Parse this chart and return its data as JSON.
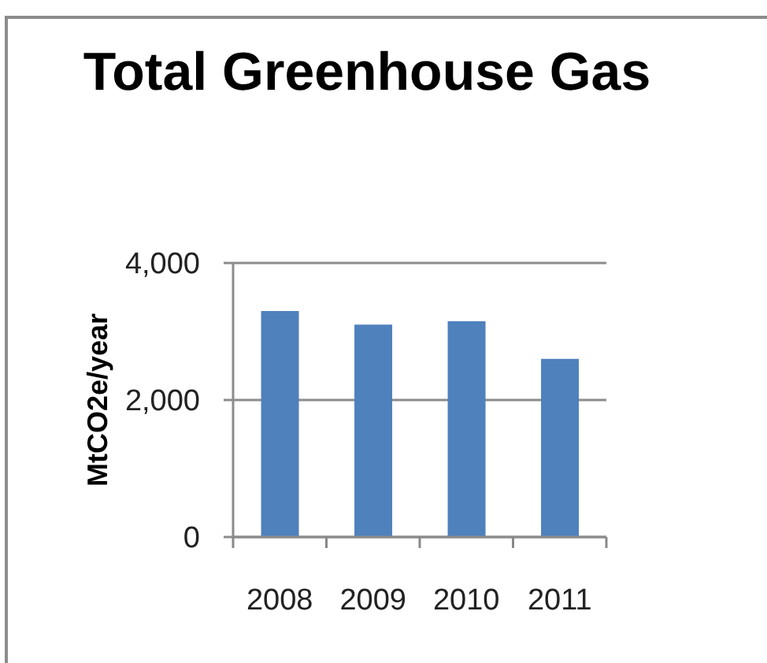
{
  "chart_data": {
    "type": "bar",
    "title": "Total Greenhouse Gas",
    "ylabel": "MtCO2e/year",
    "categories": [
      "2008",
      "2009",
      "2010",
      "2011"
    ],
    "values": [
      3300,
      3100,
      3150,
      2600
    ],
    "color": "#4f81bd",
    "ylim": [
      0,
      4000
    ],
    "yticks": [
      0,
      {
        "value": 2000,
        "label": "2,000"
      },
      {
        "value": 4000,
        "label": "4,000"
      }
    ],
    "grid": "y"
  }
}
